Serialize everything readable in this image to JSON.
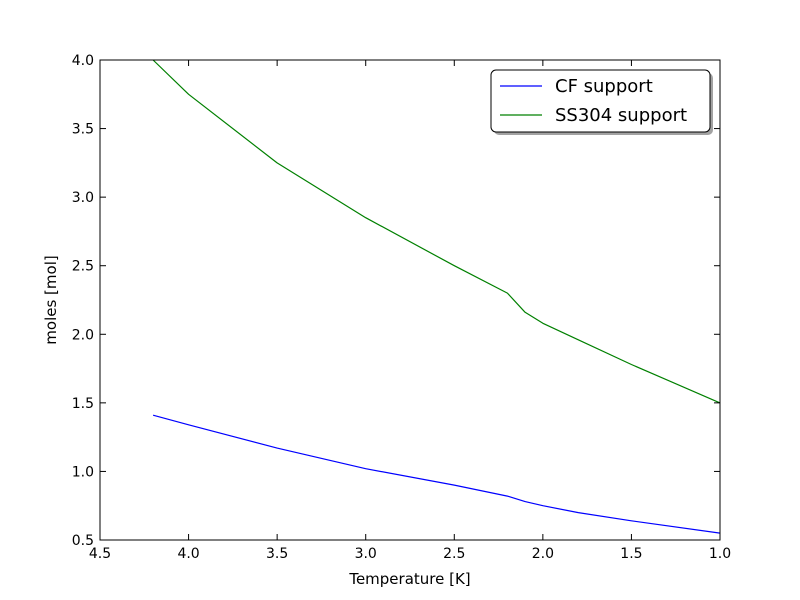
{
  "chart_data": {
    "type": "line",
    "title": "",
    "xlabel": "Temperature [K]",
    "ylabel": "moles [mol]",
    "xlim": [
      4.5,
      1.0
    ],
    "ylim": [
      0.5,
      4.0
    ],
    "x_inverted": true,
    "grid": false,
    "legend_position": "top-right",
    "x_ticks": [
      "4.5",
      "4.0",
      "3.5",
      "3.0",
      "2.5",
      "2.0",
      "1.5",
      "1.0"
    ],
    "y_ticks": [
      "0.5",
      "1.0",
      "1.5",
      "2.0",
      "2.5",
      "3.0",
      "3.5",
      "4.0"
    ],
    "series": [
      {
        "name": "CF support",
        "color": "#0000ff",
        "x": [
          4.2,
          4.0,
          3.5,
          3.0,
          2.5,
          2.2,
          2.1,
          2.0,
          1.8,
          1.5,
          1.0
        ],
        "y": [
          1.41,
          1.34,
          1.17,
          1.02,
          0.9,
          0.82,
          0.78,
          0.75,
          0.7,
          0.64,
          0.55
        ]
      },
      {
        "name": "SS304 support",
        "color": "#008000",
        "x": [
          4.2,
          4.0,
          3.5,
          3.0,
          2.5,
          2.2,
          2.1,
          2.0,
          1.8,
          1.5,
          1.0
        ],
        "y": [
          4.0,
          3.75,
          3.25,
          2.85,
          2.5,
          2.3,
          2.16,
          2.08,
          1.96,
          1.78,
          1.5
        ]
      }
    ]
  }
}
